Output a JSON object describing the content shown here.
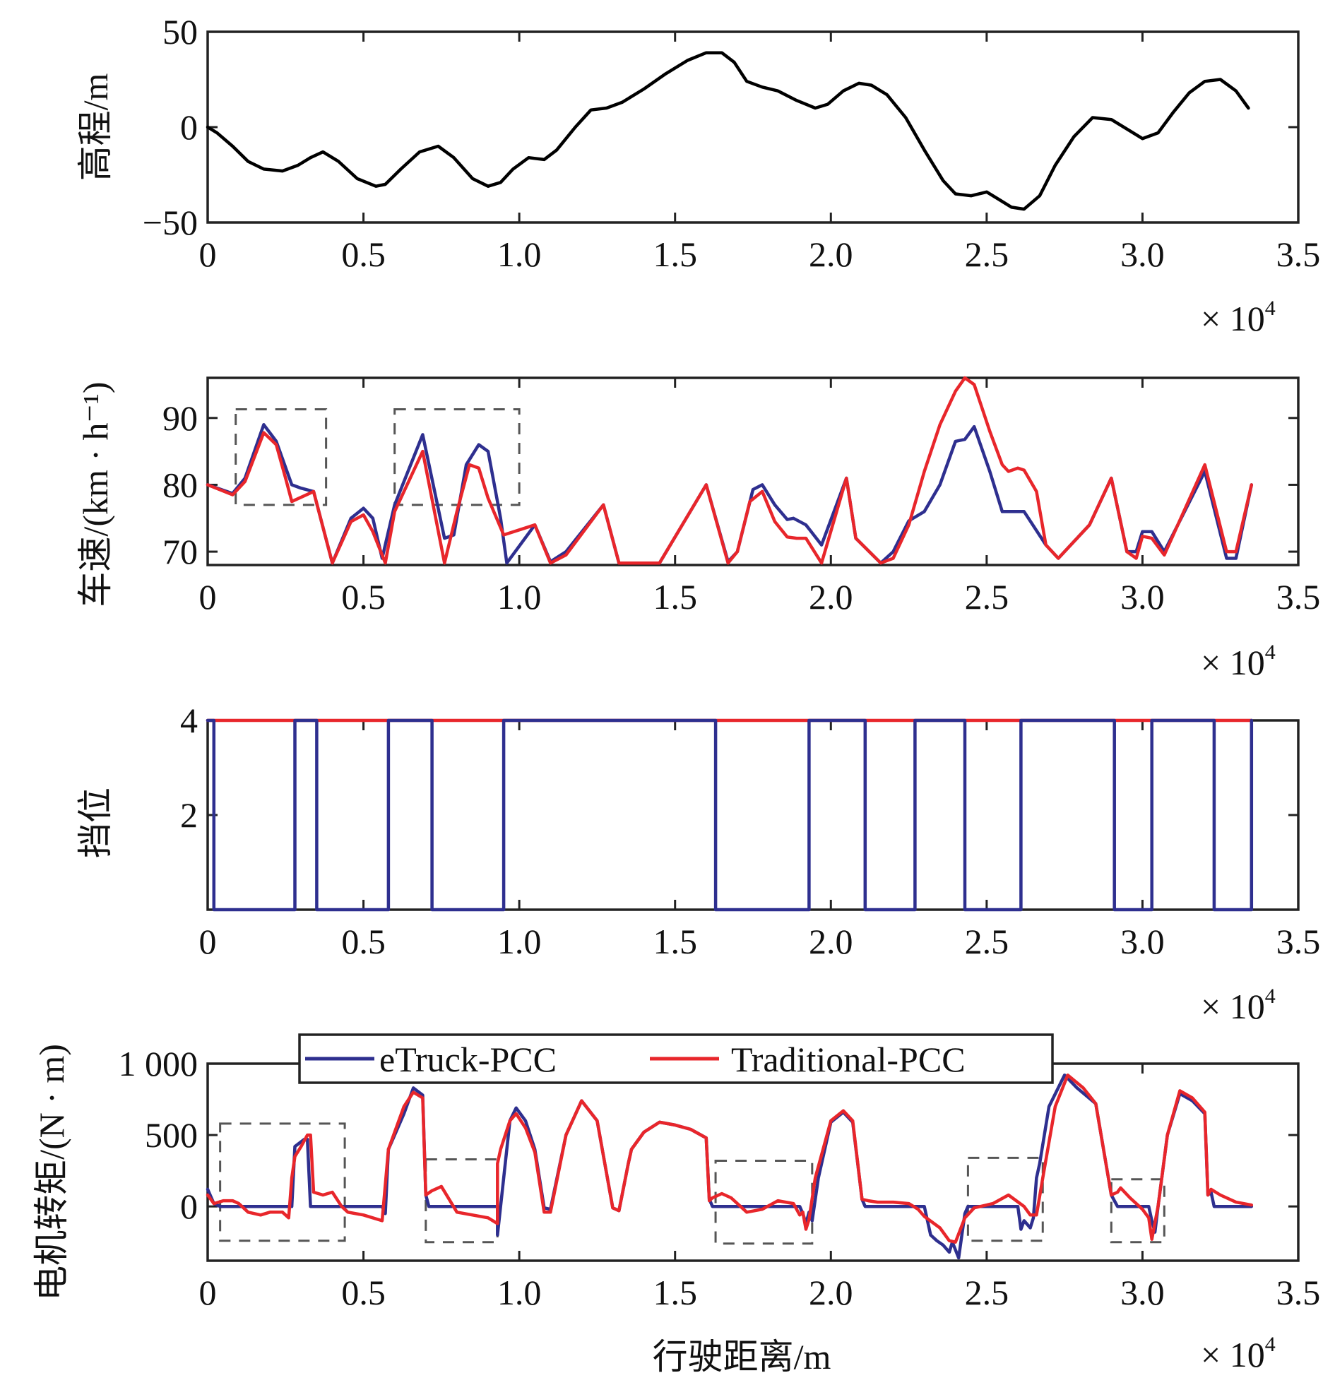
{
  "colors": {
    "etruck": "#2e2f8f",
    "traditional": "#e8262b",
    "elevation": "#000000",
    "frame": "#222222",
    "zoombox": "#555555"
  },
  "legend": {
    "entries": [
      "eTruck-PCC",
      "Traditional-PCC"
    ],
    "placement": "top-center of bottom panel"
  },
  "chart_data": [
    {
      "type": "line",
      "panel": "elevation",
      "title": "",
      "xlabel": "",
      "ylabel": "高程/m",
      "x_multiplier_label": "× 10",
      "x_multiplier_exp": "4",
      "xlim": [
        0,
        3.5
      ],
      "ylim": [
        -50,
        50
      ],
      "xticks": [
        "0",
        "0.5",
        "1.0",
        "1.5",
        "2.0",
        "2.5",
        "3.0",
        "3.5"
      ],
      "yticks": [
        "50",
        "0",
        "−50"
      ],
      "ytick_values": [
        50,
        0,
        -50
      ],
      "series": [
        {
          "name": "elevation",
          "color_key": "elevation",
          "x": [
            0,
            0.03,
            0.08,
            0.13,
            0.18,
            0.24,
            0.29,
            0.33,
            0.37,
            0.42,
            0.48,
            0.54,
            0.57,
            0.62,
            0.68,
            0.74,
            0.79,
            0.85,
            0.9,
            0.94,
            0.98,
            1.03,
            1.08,
            1.12,
            1.18,
            1.23,
            1.28,
            1.33,
            1.4,
            1.47,
            1.54,
            1.6,
            1.65,
            1.69,
            1.73,
            1.78,
            1.83,
            1.89,
            1.95,
            1.99,
            2.04,
            2.09,
            2.13,
            2.18,
            2.24,
            2.3,
            2.36,
            2.4,
            2.45,
            2.5,
            2.54,
            2.58,
            2.62,
            2.67,
            2.72,
            2.78,
            2.84,
            2.9,
            2.95,
            3.0,
            3.05,
            3.1,
            3.15,
            3.2,
            3.25,
            3.3,
            3.34
          ],
          "y": [
            0,
            -3,
            -10,
            -18,
            -22,
            -23,
            -20,
            -16,
            -13,
            -18,
            -27,
            -31,
            -30,
            -22,
            -13,
            -10,
            -16,
            -27,
            -31,
            -29,
            -22,
            -16,
            -17,
            -12,
            0,
            9,
            10,
            13,
            20,
            28,
            35,
            39,
            39,
            34,
            24,
            21,
            19,
            14,
            10,
            12,
            19,
            23,
            22,
            17,
            5,
            -12,
            -28,
            -35,
            -36,
            -34,
            -38,
            -42,
            -43,
            -36,
            -20,
            -5,
            5,
            4,
            -1,
            -6,
            -3,
            8,
            18,
            24,
            25,
            19,
            10
          ]
        }
      ]
    },
    {
      "type": "line",
      "panel": "speed",
      "title": "",
      "xlabel": "",
      "ylabel": "车速/(km · h⁻¹)",
      "x_multiplier_label": "× 10",
      "x_multiplier_exp": "4",
      "xlim": [
        0,
        3.5
      ],
      "ylim": [
        68,
        96
      ],
      "xticks": [
        "0",
        "0.5",
        "1.0",
        "1.5",
        "2.0",
        "2.5",
        "3.0",
        "3.5"
      ],
      "yticks": [
        "90",
        "80",
        "70"
      ],
      "ytick_values": [
        90,
        80,
        70
      ],
      "zoom_boxes": [
        {
          "x0": 0.09,
          "x1": 0.38,
          "y0": 77,
          "y1": 91.3
        },
        {
          "x0": 0.6,
          "x1": 1.0,
          "y0": 77,
          "y1": 91.3
        }
      ],
      "series": [
        {
          "name": "eTruck-PCC",
          "color_key": "etruck",
          "x": [
            0,
            0.08,
            0.12,
            0.18,
            0.22,
            0.27,
            0.3,
            0.34,
            0.4,
            0.46,
            0.5,
            0.53,
            0.56,
            0.6,
            0.69,
            0.76,
            0.79,
            0.83,
            0.87,
            0.9,
            0.94,
            0.96,
            1.05,
            1.1,
            1.15,
            1.27,
            1.32,
            1.35,
            1.45,
            1.6,
            1.67,
            1.7,
            1.75,
            1.78,
            1.82,
            1.86,
            1.88,
            1.92,
            1.97,
            2.05,
            2.08,
            2.16,
            2.2,
            2.25,
            2.3,
            2.35,
            2.4,
            2.43,
            2.46,
            2.51,
            2.55,
            2.57,
            2.62,
            2.69,
            2.73,
            2.83,
            2.9,
            2.95,
            2.98,
            3.0,
            3.03,
            3.07,
            3.2,
            3.27,
            3.3,
            3.35
          ],
          "y": [
            80,
            78.7,
            81,
            89,
            86.5,
            80,
            79.5,
            79,
            68.3,
            75,
            76.5,
            75,
            69,
            77,
            87.5,
            72,
            72.5,
            83,
            86,
            85,
            75,
            68.3,
            74,
            68.5,
            70,
            77,
            68.3,
            68.3,
            68.3,
            80,
            68.5,
            70,
            79.3,
            80,
            77,
            74.8,
            75,
            74,
            71,
            81,
            72,
            68.3,
            70,
            74.6,
            76,
            80,
            86.5,
            86.8,
            88.7,
            82,
            76,
            76,
            76,
            71,
            69,
            74,
            81,
            70,
            70,
            73,
            73,
            70,
            82,
            69,
            69,
            80
          ]
        },
        {
          "name": "Traditional-PCC",
          "color_key": "traditional",
          "x": [
            0,
            0.08,
            0.12,
            0.18,
            0.22,
            0.25,
            0.27,
            0.34,
            0.4,
            0.46,
            0.5,
            0.53,
            0.57,
            0.6,
            0.69,
            0.76,
            0.8,
            0.84,
            0.87,
            0.9,
            0.95,
            1.05,
            1.1,
            1.15,
            1.27,
            1.32,
            1.35,
            1.45,
            1.6,
            1.67,
            1.7,
            1.74,
            1.78,
            1.82,
            1.86,
            1.89,
            1.92,
            1.97,
            2.05,
            2.08,
            2.16,
            2.2,
            2.25,
            2.3,
            2.35,
            2.4,
            2.43,
            2.46,
            2.51,
            2.55,
            2.57,
            2.6,
            2.62,
            2.66,
            2.69,
            2.73,
            2.83,
            2.9,
            2.95,
            2.98,
            3.0,
            3.03,
            3.07,
            3.2,
            3.27,
            3.3,
            3.35
          ],
          "y": [
            80,
            78.5,
            80.5,
            87.8,
            86,
            81,
            77.5,
            79,
            68.3,
            74.5,
            75.5,
            73,
            68.3,
            76,
            85,
            68.3,
            76,
            83,
            82.5,
            78,
            72.5,
            74,
            68.3,
            69.5,
            77,
            68.3,
            68.3,
            68.3,
            80,
            68.3,
            70,
            77.5,
            79,
            74.5,
            72.2,
            72,
            72,
            68.3,
            81,
            72,
            68.3,
            69,
            74,
            82,
            89,
            94,
            96,
            95,
            88,
            83,
            82,
            82.5,
            82.2,
            79,
            71,
            69,
            74,
            81,
            70,
            69,
            72.3,
            72,
            69.5,
            83,
            70,
            70,
            80
          ]
        }
      ]
    },
    {
      "type": "line",
      "panel": "gear",
      "title": "",
      "xlabel": "",
      "ylabel": "挡位",
      "x_multiplier_label": "× 10",
      "x_multiplier_exp": "4",
      "xlim": [
        0,
        3.5
      ],
      "ylim": [
        0,
        4
      ],
      "xticks": [
        "0",
        "0.5",
        "1.0",
        "1.5",
        "2.0",
        "2.5",
        "3.0",
        "3.5"
      ],
      "yticks": [
        "4",
        "2"
      ],
      "ytick_values": [
        4,
        2
      ],
      "series": [
        {
          "name": "eTruck-PCC",
          "color_key": "etruck",
          "step_intervals_neutral": [
            [
              0.02,
              0.28
            ],
            [
              0.35,
              0.58
            ],
            [
              0.72,
              0.95
            ],
            [
              1.63,
              1.93
            ],
            [
              2.11,
              2.27
            ],
            [
              2.43,
              2.61
            ],
            [
              2.91,
              3.03
            ],
            [
              3.23,
              3.35
            ]
          ],
          "high_gear": 4,
          "neutral": 0,
          "x_end": 3.35
        },
        {
          "name": "Traditional-PCC",
          "color_key": "traditional",
          "x": [
            0,
            3.35
          ],
          "y": [
            4,
            4
          ]
        }
      ]
    },
    {
      "type": "line",
      "panel": "motor-torque",
      "title": "",
      "xlabel": "行驶距离/m",
      "ylabel": "电机转矩/(N · m)",
      "x_multiplier_label": "× 10",
      "x_multiplier_exp": "4",
      "xlim": [
        0,
        3.5
      ],
      "ylim": [
        -380,
        1000
      ],
      "xticks": [
        "0",
        "0.5",
        "1.0",
        "1.5",
        "2.0",
        "2.5",
        "3.0",
        "3.5"
      ],
      "yticks": [
        "1 000",
        "500",
        "0"
      ],
      "ytick_values": [
        1000,
        500,
        0
      ],
      "zoom_boxes": [
        {
          "x0": 0.04,
          "x1": 0.44,
          "y0": -240,
          "y1": 580
        },
        {
          "x0": 0.7,
          "x1": 0.93,
          "y0": -250,
          "y1": 330
        },
        {
          "x0": 1.63,
          "x1": 1.94,
          "y0": -260,
          "y1": 320
        },
        {
          "x0": 2.44,
          "x1": 2.68,
          "y0": -240,
          "y1": 340
        },
        {
          "x0": 2.9,
          "x1": 3.07,
          "y0": -250,
          "y1": 190
        }
      ],
      "series": [
        {
          "name": "eTruck-PCC",
          "color_key": "etruck",
          "x": [
            0,
            0.02,
            0.04,
            0.25,
            0.27,
            0.28,
            0.31,
            0.32,
            0.33,
            0.35,
            0.56,
            0.57,
            0.58,
            0.63,
            0.66,
            0.69,
            0.7,
            0.71,
            0.93,
            0.93,
            0.95,
            0.97,
            0.99,
            1.02,
            1.05,
            1.08,
            1.1,
            1.15,
            1.2,
            1.25,
            1.3,
            1.32,
            1.35,
            1.36,
            1.4,
            1.45,
            1.5,
            1.55,
            1.6,
            1.61,
            1.62,
            1.64,
            1.9,
            1.91,
            1.92,
            1.93,
            1.94,
            1.96,
            2.0,
            2.04,
            2.07,
            2.1,
            2.11,
            2.15,
            2.3,
            2.32,
            2.34,
            2.36,
            2.38,
            2.39,
            2.41,
            2.43,
            2.44,
            2.6,
            2.61,
            2.62,
            2.64,
            2.65,
            2.66,
            2.67,
            2.7,
            2.75,
            2.79,
            2.85,
            2.9,
            2.92,
            2.93,
            3.02,
            3.03,
            3.04,
            3.05,
            3.08,
            3.12,
            3.16,
            3.2,
            3.21,
            3.22,
            3.23,
            3.24,
            3.35
          ],
          "y": [
            120,
            20,
            0,
            0,
            0,
            420,
            470,
            470,
            0,
            0,
            0,
            -50,
            400,
            650,
            830,
            780,
            80,
            0,
            0,
            -200,
            200,
            600,
            690,
            600,
            400,
            -10,
            -20,
            500,
            740,
            600,
            -10,
            -30,
            300,
            400,
            520,
            590,
            570,
            540,
            480,
            50,
            0,
            0,
            0,
            -50,
            -120,
            -40,
            -100,
            200,
            590,
            660,
            590,
            50,
            0,
            0,
            0,
            -200,
            -240,
            -270,
            -320,
            -250,
            -360,
            -50,
            0,
            0,
            -160,
            -100,
            -150,
            -80,
            200,
            300,
            700,
            920,
            830,
            720,
            80,
            0,
            0,
            0,
            -100,
            -180,
            0,
            500,
            790,
            740,
            650,
            80,
            100,
            0,
            0,
            0
          ]
        },
        {
          "name": "Traditional-PCC",
          "color_key": "traditional",
          "x": [
            0,
            0.02,
            0.05,
            0.08,
            0.1,
            0.13,
            0.17,
            0.2,
            0.24,
            0.26,
            0.27,
            0.28,
            0.3,
            0.32,
            0.33,
            0.34,
            0.37,
            0.4,
            0.43,
            0.45,
            0.5,
            0.56,
            0.58,
            0.63,
            0.66,
            0.69,
            0.7,
            0.72,
            0.75,
            0.8,
            0.85,
            0.9,
            0.93,
            0.93,
            0.94,
            0.97,
            0.99,
            1.02,
            1.05,
            1.08,
            1.1,
            1.15,
            1.2,
            1.25,
            1.3,
            1.32,
            1.35,
            1.36,
            1.4,
            1.45,
            1.5,
            1.55,
            1.6,
            1.61,
            1.62,
            1.65,
            1.68,
            1.73,
            1.78,
            1.83,
            1.88,
            1.9,
            1.91,
            1.92,
            1.93,
            1.95,
            2.0,
            2.04,
            2.07,
            2.1,
            2.12,
            2.15,
            2.2,
            2.25,
            2.28,
            2.3,
            2.35,
            2.38,
            2.4,
            2.43,
            2.46,
            2.52,
            2.57,
            2.62,
            2.64,
            2.66,
            2.68,
            2.72,
            2.76,
            2.81,
            2.85,
            2.9,
            2.92,
            2.93,
            2.96,
            3.0,
            3.02,
            3.03,
            3.05,
            3.08,
            3.12,
            3.16,
            3.2,
            3.21,
            3.22,
            3.25,
            3.3,
            3.35
          ],
          "y": [
            80,
            20,
            40,
            40,
            20,
            -40,
            -60,
            -40,
            -40,
            -80,
            200,
            350,
            420,
            500,
            500,
            100,
            80,
            100,
            0,
            -40,
            -60,
            -100,
            400,
            700,
            800,
            760,
            80,
            110,
            140,
            -40,
            -60,
            -80,
            -120,
            300,
            400,
            600,
            650,
            550,
            380,
            -40,
            -40,
            500,
            740,
            600,
            -10,
            -30,
            300,
            400,
            520,
            590,
            570,
            540,
            480,
            40,
            60,
            90,
            60,
            -40,
            -20,
            40,
            20,
            -60,
            -40,
            -160,
            -90,
            200,
            600,
            670,
            600,
            50,
            40,
            30,
            30,
            20,
            -20,
            -70,
            -150,
            -240,
            -250,
            -80,
            -10,
            20,
            80,
            0,
            -60,
            -60,
            200,
            700,
            920,
            830,
            720,
            80,
            100,
            130,
            60,
            -20,
            -80,
            -230,
            0,
            500,
            810,
            760,
            660,
            80,
            120,
            80,
            30,
            10
          ]
        }
      ]
    }
  ]
}
